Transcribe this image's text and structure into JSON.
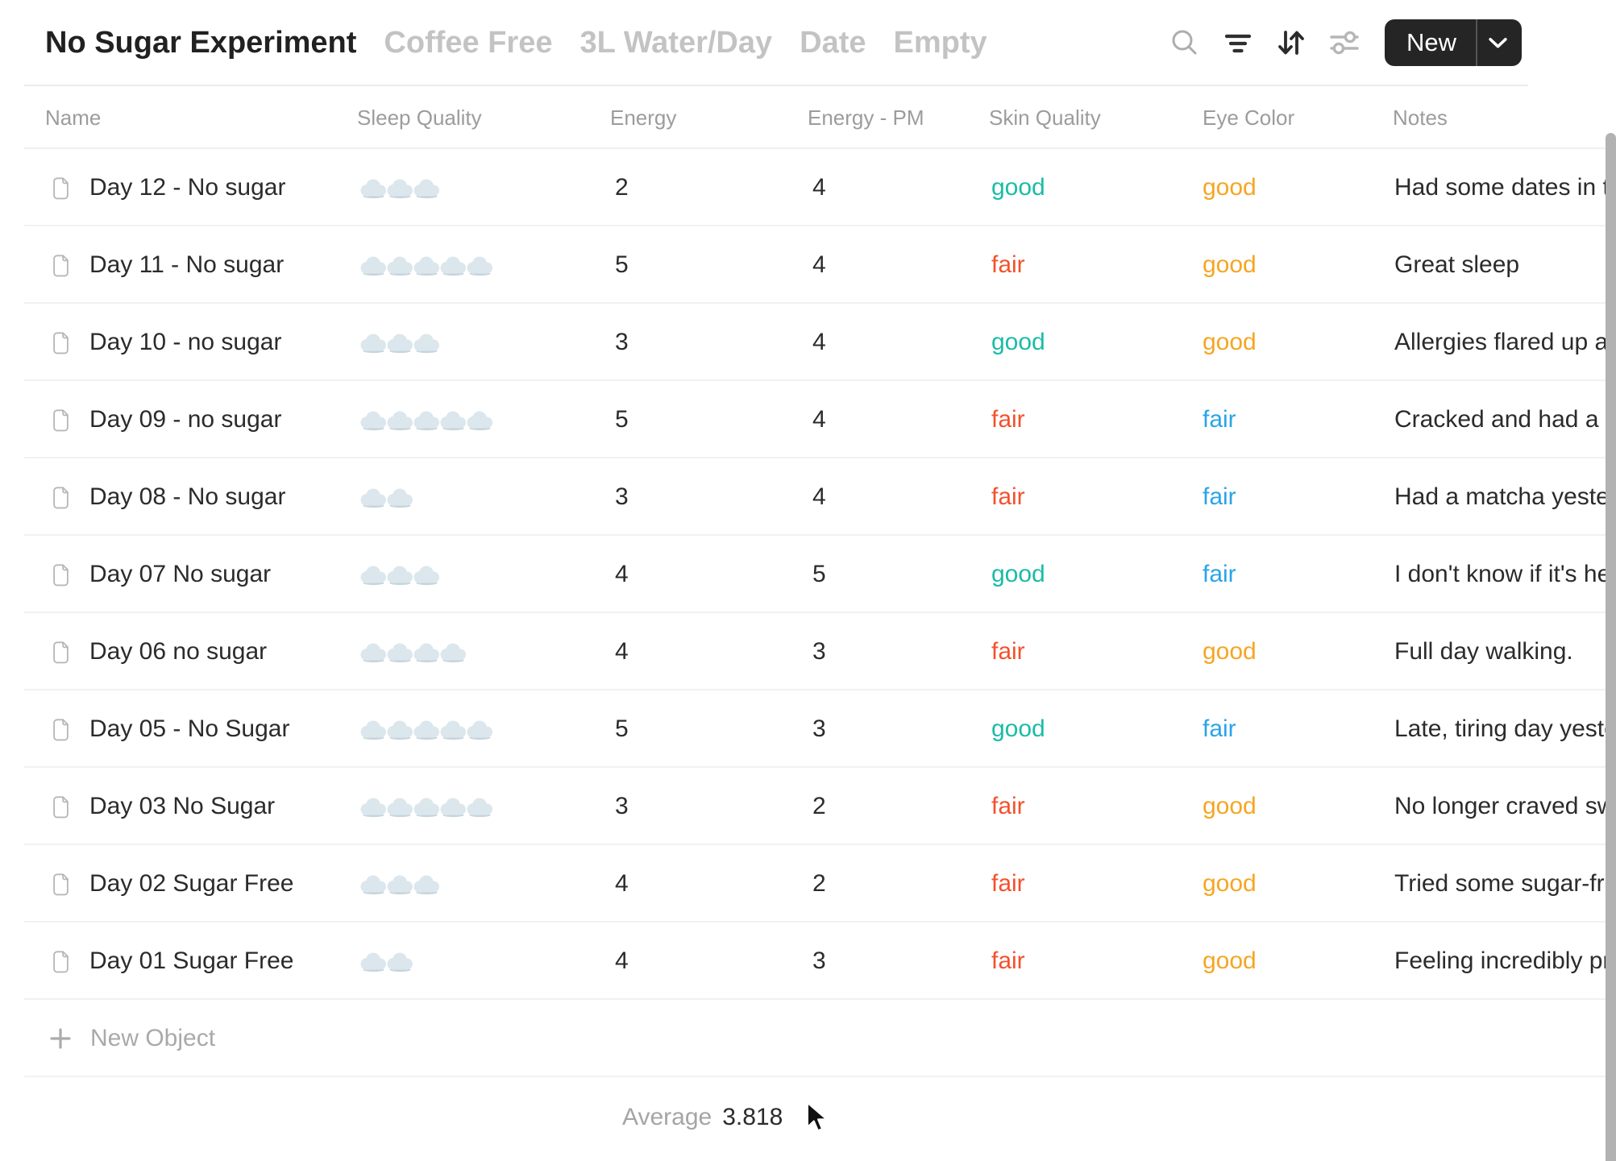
{
  "header": {
    "active_tab": "No Sugar Experiment",
    "tabs": [
      "Coffee Free",
      "3L Water/Day",
      "Date",
      "Empty"
    ],
    "new_button_label": "New"
  },
  "icons": {
    "search": "magnifier",
    "filter": "three-decreasing-lines",
    "sort": "down-up-arrows",
    "settings": "sliders",
    "new_dropdown": "chevron-down",
    "row_object": "page-with-folded-corner",
    "sleep_unit": "cloud",
    "new_object": "plus"
  },
  "table": {
    "columns": [
      "Name",
      "Sleep Quality",
      "Energy",
      "Energy - PM",
      "Skin Quality",
      "Eye Color",
      "Notes"
    ],
    "rows": [
      {
        "name": "Day 12 - No sugar",
        "sleep": 3,
        "energy": "2",
        "energy_pm": "4",
        "skin": "good",
        "eye": "good",
        "notes": "Had some dates in th"
      },
      {
        "name": "Day 11 - No sugar",
        "sleep": 5,
        "energy": "5",
        "energy_pm": "4",
        "skin": "fair",
        "eye": "good",
        "notes": "Great sleep"
      },
      {
        "name": "Day 10 - no sugar",
        "sleep": 3,
        "energy": "3",
        "energy_pm": "4",
        "skin": "good",
        "eye": "good",
        "notes": "Allergies flared up ag"
      },
      {
        "name": "Day 09 - no sugar",
        "sleep": 5,
        "energy": "5",
        "energy_pm": "4",
        "skin": "fair",
        "eye": "fair",
        "notes": "Cracked and had a ti"
      },
      {
        "name": "Day 08 - No sugar",
        "sleep": 2,
        "energy": "3",
        "energy_pm": "4",
        "skin": "fair",
        "eye": "fair",
        "notes": "Had a matcha yester"
      },
      {
        "name": "Day 07 No sugar",
        "sleep": 3,
        "energy": "4",
        "energy_pm": "5",
        "skin": "good",
        "eye": "fair",
        "notes": "I don't know if it's he"
      },
      {
        "name": "Day 06 no sugar",
        "sleep": 4,
        "energy": "4",
        "energy_pm": "3",
        "skin": "fair",
        "eye": "good",
        "notes": "Full day walking."
      },
      {
        "name": "Day 05 - No Sugar",
        "sleep": 5,
        "energy": "5",
        "energy_pm": "3",
        "skin": "good",
        "eye": "fair",
        "notes": "Late, tiring day yeste"
      },
      {
        "name": "Day 03 No Sugar",
        "sleep": 5,
        "energy": "3",
        "energy_pm": "2",
        "skin": "fair",
        "eye": "good",
        "notes": "No longer craved sw"
      },
      {
        "name": "Day 02 Sugar Free",
        "sleep": 3,
        "energy": "4",
        "energy_pm": "2",
        "skin": "fair",
        "eye": "good",
        "notes": "Tried some sugar-fre"
      },
      {
        "name": "Day 01 Sugar Free",
        "sleep": 2,
        "energy": "4",
        "energy_pm": "3",
        "skin": "fair",
        "eye": "good",
        "notes": "Feeling incredibly pro"
      }
    ]
  },
  "footer": {
    "new_object_label": "New Object",
    "average_label": "Average",
    "average_value": "3.818"
  },
  "colors": {
    "skin": {
      "good": "#1abca6",
      "fair": "#f4512c"
    },
    "eye": {
      "good": "#f5a623",
      "fair": "#2aa4e8"
    },
    "new_button_bg": "#252525",
    "cloud_fill": "#dce7ed",
    "scrollbar": "#b2b2b2"
  }
}
